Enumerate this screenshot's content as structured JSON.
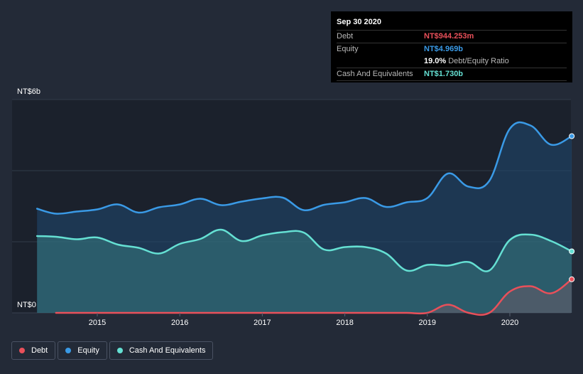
{
  "tooltip": {
    "date": "Sep 30 2020",
    "rows": {
      "debt": {
        "label": "Debt",
        "value": "NT$944.253m"
      },
      "equity": {
        "label": "Equity",
        "value": "NT$4.969b"
      },
      "ratio": {
        "value": "19.0%",
        "label": "Debt/Equity Ratio"
      },
      "cash": {
        "label": "Cash And Equivalents",
        "value": "NT$1.730b"
      }
    }
  },
  "legend": {
    "debt": "Debt",
    "equity": "Equity",
    "cash": "Cash And Equivalents"
  },
  "colors": {
    "debt": "#e9505a",
    "equity": "#3a9ae6",
    "cash": "#65e0d3",
    "background": "#232a37"
  },
  "chart_data": {
    "type": "area",
    "y_top_label": "NT$6b",
    "y_bottom_label": "NT$0",
    "ylim": [
      0,
      6.0
    ],
    "xlim": [
      2014.27,
      2020.75
    ],
    "x_ticks": [
      "2015",
      "2016",
      "2017",
      "2018",
      "2019",
      "2020"
    ],
    "series": [
      {
        "name": "Equity",
        "x": [
          2014.27,
          2014.5,
          2014.75,
          2015.0,
          2015.25,
          2015.5,
          2015.75,
          2016.0,
          2016.25,
          2016.5,
          2016.75,
          2017.0,
          2017.25,
          2017.5,
          2017.75,
          2018.0,
          2018.25,
          2018.5,
          2018.75,
          2019.0,
          2019.25,
          2019.5,
          2019.75,
          2020.0,
          2020.25,
          2020.5,
          2020.75
        ],
        "values": [
          2.93,
          2.79,
          2.85,
          2.91,
          3.05,
          2.82,
          2.97,
          3.05,
          3.21,
          3.03,
          3.13,
          3.22,
          3.24,
          2.89,
          3.04,
          3.11,
          3.23,
          2.98,
          3.11,
          3.23,
          3.92,
          3.55,
          3.71,
          5.18,
          5.27,
          4.73,
          4.97
        ]
      },
      {
        "name": "Cash And Equivalents",
        "x": [
          2014.27,
          2014.5,
          2014.75,
          2015.0,
          2015.25,
          2015.5,
          2015.75,
          2016.0,
          2016.25,
          2016.5,
          2016.75,
          2017.0,
          2017.25,
          2017.5,
          2017.75,
          2018.0,
          2018.25,
          2018.5,
          2018.75,
          2019.0,
          2019.25,
          2019.5,
          2019.75,
          2020.0,
          2020.25,
          2020.5,
          2020.75
        ],
        "values": [
          2.16,
          2.14,
          2.07,
          2.12,
          1.92,
          1.83,
          1.67,
          1.94,
          2.08,
          2.34,
          2.02,
          2.18,
          2.27,
          2.26,
          1.78,
          1.85,
          1.85,
          1.67,
          1.19,
          1.35,
          1.33,
          1.43,
          1.19,
          2.05,
          2.2,
          2.02,
          1.73
        ]
      },
      {
        "name": "Debt",
        "x": [
          2014.5,
          2014.75,
          2015.0,
          2015.25,
          2015.5,
          2015.75,
          2016.0,
          2016.25,
          2016.5,
          2016.75,
          2017.0,
          2017.25,
          2017.5,
          2017.75,
          2018.0,
          2018.25,
          2018.5,
          2018.75,
          2019.0,
          2019.25,
          2019.5,
          2019.75,
          2020.0,
          2020.25,
          2020.5,
          2020.75
        ],
        "values": [
          0,
          0,
          0,
          0,
          0,
          0,
          0,
          0,
          0,
          0,
          0,
          0,
          0,
          0,
          0,
          0,
          0,
          0,
          0,
          0.23,
          0,
          0,
          0.6,
          0.75,
          0.55,
          0.944
        ]
      }
    ]
  }
}
